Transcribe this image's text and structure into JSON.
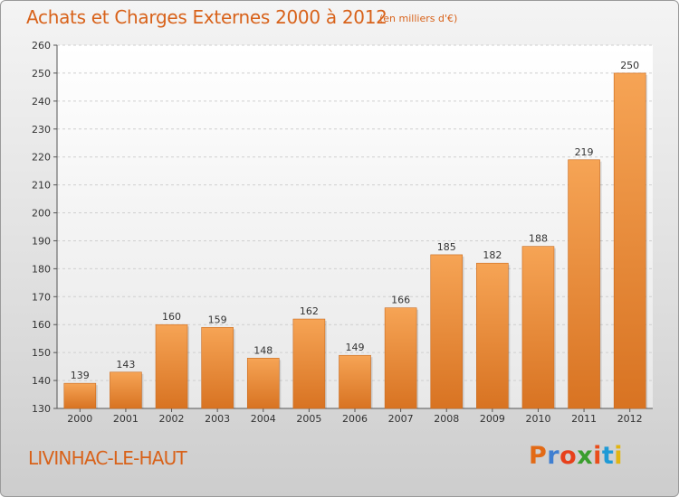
{
  "header": {
    "title": "Achats et Charges Externes 2000 à 2012",
    "unit": "(en milliers d'€)"
  },
  "footer": {
    "place": "LIVINHAC-LE-HAUT",
    "logo": "Proxiti"
  },
  "colors": {
    "accent": "#d8621a",
    "bar_light": "#f6a455",
    "bar_dark": "#d87322",
    "logo_letters": [
      "#e26a16",
      "#3f7fd1",
      "#e7401b",
      "#3a9e2e",
      "#e94d1b",
      "#1f9ad6",
      "#e2b511"
    ]
  },
  "chart_data": {
    "type": "bar",
    "title": "Achats et Charges Externes 2000 à 2012",
    "subtitle": "(en milliers d'€)",
    "categories": [
      "2000",
      "2001",
      "2002",
      "2003",
      "2004",
      "2005",
      "2006",
      "2007",
      "2008",
      "2009",
      "2010",
      "2011",
      "2012"
    ],
    "values": [
      139,
      143,
      160,
      159,
      148,
      162,
      149,
      166,
      185,
      182,
      188,
      219,
      250
    ],
    "ylim": [
      130,
      260
    ],
    "yticks": [
      130,
      140,
      150,
      160,
      170,
      180,
      190,
      200,
      210,
      220,
      230,
      240,
      250,
      260
    ],
    "grid": true,
    "legend": "none"
  }
}
